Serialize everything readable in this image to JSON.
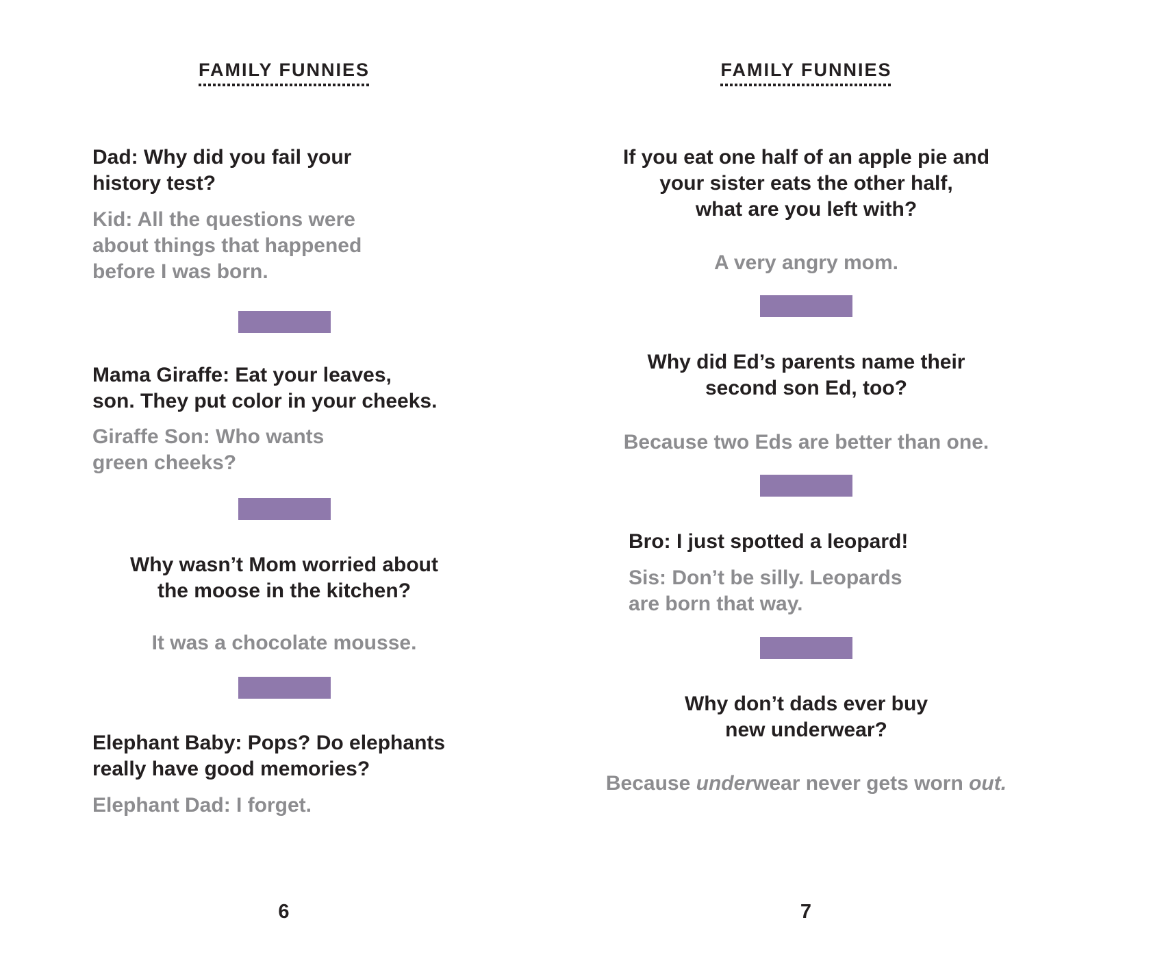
{
  "colors": {
    "ink": "#231F20",
    "answer_gray": "#8C8C8F",
    "divider_purple": "#8F79AC",
    "page_bg": "#FFFFFF"
  },
  "pages": [
    {
      "header": "FAMILY FUNNIES",
      "page_number": "6",
      "jokes": [
        {
          "question": "Dad: Why did you fail your\nhistory test?",
          "answer": "Kid: All the questions were\nabout things that happened\nbefore I was born."
        },
        {
          "question": "Mama Giraffe: Eat your leaves,\nson. They put color in your cheeks.",
          "answer": "Giraffe Son: Who wants\ngreen cheeks?"
        },
        {
          "question": "Why wasn’t Mom worried about\nthe moose in the kitchen?",
          "answer": "It was a chocolate mousse."
        },
        {
          "question": "Elephant Baby: Pops? Do elephants\nreally have good memories?",
          "answer": "Elephant Dad: I forget."
        }
      ]
    },
    {
      "header": "FAMILY FUNNIES",
      "page_number": "7",
      "jokes": [
        {
          "question": "If you eat one half of an apple pie and\nyour sister eats the other half,\nwhat are you left with?",
          "answer": "A very angry mom."
        },
        {
          "question": "Why did Ed’s parents name their\nsecond son Ed, too?",
          "answer": "Because two Eds are better than one."
        },
        {
          "question": "Bro: I just spotted a leopard!",
          "answer": "Sis: Don’t be silly. Leopards\nare born that way."
        },
        {
          "question": "Why don’t dads ever buy\nnew underwear?",
          "answer_rich": [
            {
              "t": "Because ",
              "i": false
            },
            {
              "t": "under",
              "i": true
            },
            {
              "t": "wear never gets worn ",
              "i": false
            },
            {
              "t": "out.",
              "i": true
            }
          ]
        }
      ]
    }
  ]
}
